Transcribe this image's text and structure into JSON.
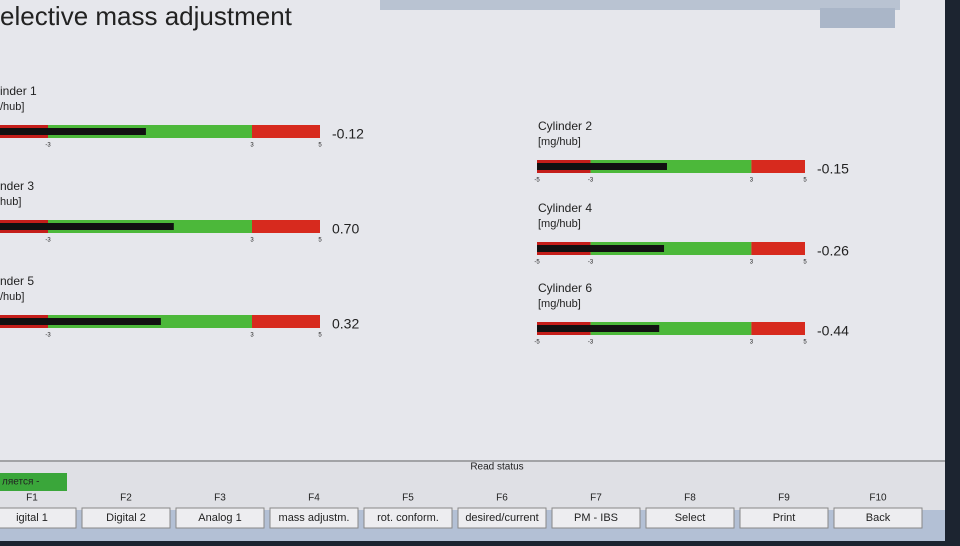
{
  "header": {
    "title": "elective mass adjustment"
  },
  "scale": {
    "xlim": [
      -5,
      5
    ],
    "xticks": [
      -5,
      -3,
      3,
      5
    ]
  },
  "gauges": [
    {
      "label": "inder 1",
      "unit": "/hub]",
      "value": -0.12
    },
    {
      "label": "Cylinder 2",
      "unit": "[mg/hub]",
      "value": -0.15
    },
    {
      "label": "nder 3",
      "unit": "hub]",
      "value": 0.7,
      "value_label": "0.70"
    },
    {
      "label": "Cylinder 4",
      "unit": "[mg/hub]",
      "value": -0.26
    },
    {
      "label": "nder 5",
      "unit": "/hub]",
      "value": 0.32
    },
    {
      "label": "Cylinder 6",
      "unit": "[mg/hub]",
      "value": -0.44
    }
  ],
  "status": {
    "badge": "ляется -",
    "text": "Read status"
  },
  "keys": [
    {
      "key": "F1",
      "label": "igital 1"
    },
    {
      "key": "F2",
      "label": "Digital 2"
    },
    {
      "key": "F3",
      "label": "Analog 1"
    },
    {
      "key": "F4",
      "label": "mass adjustm."
    },
    {
      "key": "F5",
      "label": "rot. conform."
    },
    {
      "key": "F6",
      "label": "desired/current"
    },
    {
      "key": "F7",
      "label": "PM - IBS"
    },
    {
      "key": "F8",
      "label": "Select"
    },
    {
      "key": "F9",
      "label": "Print"
    },
    {
      "key": "F10",
      "label": "Back"
    }
  ]
}
